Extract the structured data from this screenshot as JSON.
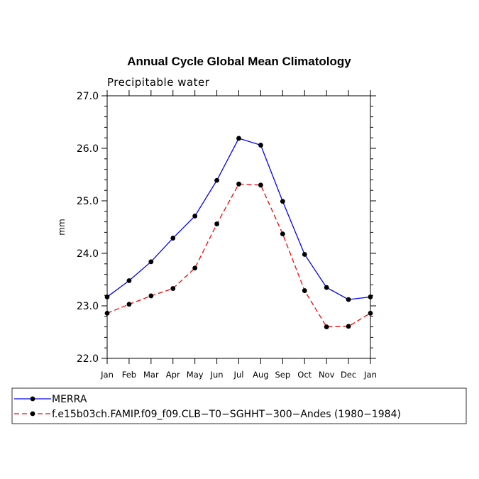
{
  "chart_data": {
    "type": "line",
    "title": "Annual Cycle Global Mean Climatology",
    "subtitle": "Precipitable water",
    "xlabel": "",
    "ylabel": "mm",
    "categories": [
      "Jan",
      "Feb",
      "Mar",
      "Apr",
      "May",
      "Jun",
      "Jul",
      "Aug",
      "Sep",
      "Oct",
      "Nov",
      "Dec",
      "Jan"
    ],
    "ylim": [
      22.0,
      27.0
    ],
    "yticks": [
      "22.0",
      "23.0",
      "24.0",
      "25.0",
      "26.0",
      "27.0"
    ],
    "grid": false,
    "legend_placement": "bottom",
    "series": [
      {
        "name": "MERRA",
        "color": "#0000ff",
        "dash": "solid",
        "values": [
          23.17,
          23.48,
          23.84,
          24.29,
          24.71,
          25.39,
          26.19,
          26.06,
          24.99,
          23.98,
          23.35,
          23.12,
          23.17
        ]
      },
      {
        "name": "f.e15b03ch.FAMIP.f09_f09.CLB−T0−SGHHT−300−Andes (1980−1984)",
        "color": "#ff0000",
        "dash": "dashed",
        "values": [
          22.86,
          23.03,
          23.19,
          23.33,
          23.72,
          24.56,
          25.32,
          25.3,
          24.37,
          23.29,
          22.6,
          22.61,
          22.86
        ]
      }
    ]
  }
}
